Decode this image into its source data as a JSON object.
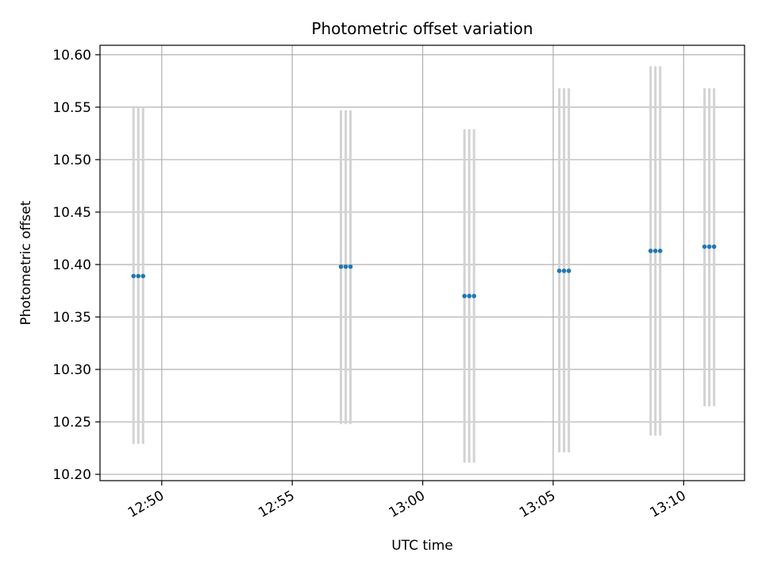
{
  "chart_data": {
    "type": "scatter",
    "title": "Photometric offset variation",
    "xlabel": "UTC time",
    "ylabel": "Photometric offset",
    "x_axis_kind": "time",
    "xlim": [
      "12:47:38",
      "13:12:20"
    ],
    "ylim": [
      10.194,
      10.609
    ],
    "y_ticks": [
      10.2,
      10.25,
      10.3,
      10.35,
      10.4,
      10.45,
      10.5,
      10.55,
      10.6
    ],
    "x_ticks": [
      "12:50",
      "12:55",
      "13:00",
      "13:05",
      "13:10"
    ],
    "grid": true,
    "marker_color": "#1f77b4",
    "errorbar_color": "#d3d3d3",
    "series": [
      {
        "points": [
          {
            "x": "12:48:55",
            "y": 10.389,
            "yerr_low": 10.229,
            "yerr_high": 10.55
          },
          {
            "x": "12:49:06",
            "y": 10.389,
            "yerr_low": 10.229,
            "yerr_high": 10.55
          },
          {
            "x": "12:49:17",
            "y": 10.389,
            "yerr_low": 10.229,
            "yerr_high": 10.55
          },
          {
            "x": "12:56:52",
            "y": 10.398,
            "yerr_low": 10.248,
            "yerr_high": 10.547
          },
          {
            "x": "12:57:03",
            "y": 10.398,
            "yerr_low": 10.248,
            "yerr_high": 10.547
          },
          {
            "x": "12:57:14",
            "y": 10.398,
            "yerr_low": 10.248,
            "yerr_high": 10.547
          },
          {
            "x": "13:01:36",
            "y": 10.37,
            "yerr_low": 10.211,
            "yerr_high": 10.529
          },
          {
            "x": "13:01:47",
            "y": 10.37,
            "yerr_low": 10.211,
            "yerr_high": 10.529
          },
          {
            "x": "13:01:58",
            "y": 10.37,
            "yerr_low": 10.211,
            "yerr_high": 10.529
          },
          {
            "x": "13:05:14",
            "y": 10.394,
            "yerr_low": 10.221,
            "yerr_high": 10.568
          },
          {
            "x": "13:05:25",
            "y": 10.394,
            "yerr_low": 10.221,
            "yerr_high": 10.568
          },
          {
            "x": "13:05:36",
            "y": 10.394,
            "yerr_low": 10.221,
            "yerr_high": 10.568
          },
          {
            "x": "13:08:44",
            "y": 10.413,
            "yerr_low": 10.237,
            "yerr_high": 10.589
          },
          {
            "x": "13:08:55",
            "y": 10.413,
            "yerr_low": 10.237,
            "yerr_high": 10.589
          },
          {
            "x": "13:09:06",
            "y": 10.413,
            "yerr_low": 10.237,
            "yerr_high": 10.589
          },
          {
            "x": "13:10:48",
            "y": 10.417,
            "yerr_low": 10.265,
            "yerr_high": 10.568
          },
          {
            "x": "13:10:59",
            "y": 10.417,
            "yerr_low": 10.265,
            "yerr_high": 10.568
          },
          {
            "x": "13:11:10",
            "y": 10.417,
            "yerr_low": 10.265,
            "yerr_high": 10.568
          }
        ]
      }
    ]
  }
}
